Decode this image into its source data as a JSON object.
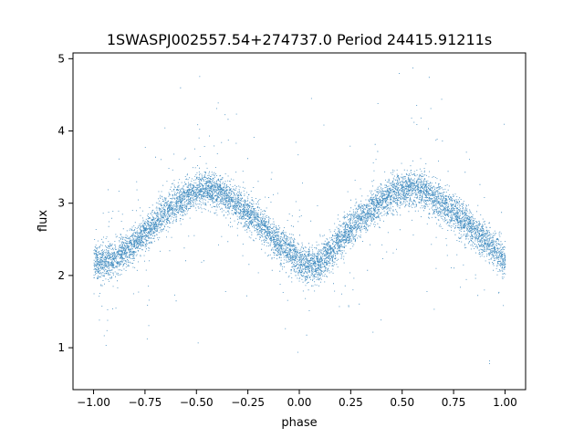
{
  "chart_data": {
    "type": "scatter",
    "title": "1SWASPJ002557.54+274737.0 Period 24415.91211s",
    "xlabel": "phase",
    "ylabel": "flux",
    "xlim": [
      -1.1,
      1.1
    ],
    "ylim": [
      0.42,
      5.08
    ],
    "x_ticks": [
      -1.0,
      -0.75,
      -0.5,
      -0.25,
      0.0,
      0.25,
      0.5,
      0.75,
      1.0
    ],
    "x_tick_labels": [
      "−1.00",
      "−0.75",
      "−0.50",
      "−0.25",
      "0.00",
      "0.25",
      "0.50",
      "0.75",
      "1.00"
    ],
    "y_ticks": [
      1,
      2,
      3,
      4,
      5
    ],
    "y_tick_labels": [
      "1",
      "2",
      "3",
      "4",
      "5"
    ],
    "grid": false,
    "point_color": "#1f77b4",
    "series": [
      {
        "phase_range": [
          -1.0,
          1.0
        ],
        "trend": {
          "x": [
            -1.0,
            -0.9,
            -0.8,
            -0.7,
            -0.6,
            -0.5,
            -0.45,
            -0.4,
            -0.3,
            -0.2,
            -0.1,
            0.0,
            0.05,
            0.1,
            0.2,
            0.3,
            0.4,
            0.5,
            0.55,
            0.6,
            0.7,
            0.8,
            0.9,
            1.0
          ],
          "y": [
            2.18,
            2.22,
            2.45,
            2.75,
            3.0,
            3.18,
            3.2,
            3.17,
            3.0,
            2.75,
            2.45,
            2.2,
            2.15,
            2.2,
            2.5,
            2.8,
            3.05,
            3.2,
            3.22,
            3.18,
            3.0,
            2.75,
            2.5,
            2.22
          ]
        },
        "scatter_sigma": 0.12,
        "point_count": 9000
      }
    ]
  }
}
